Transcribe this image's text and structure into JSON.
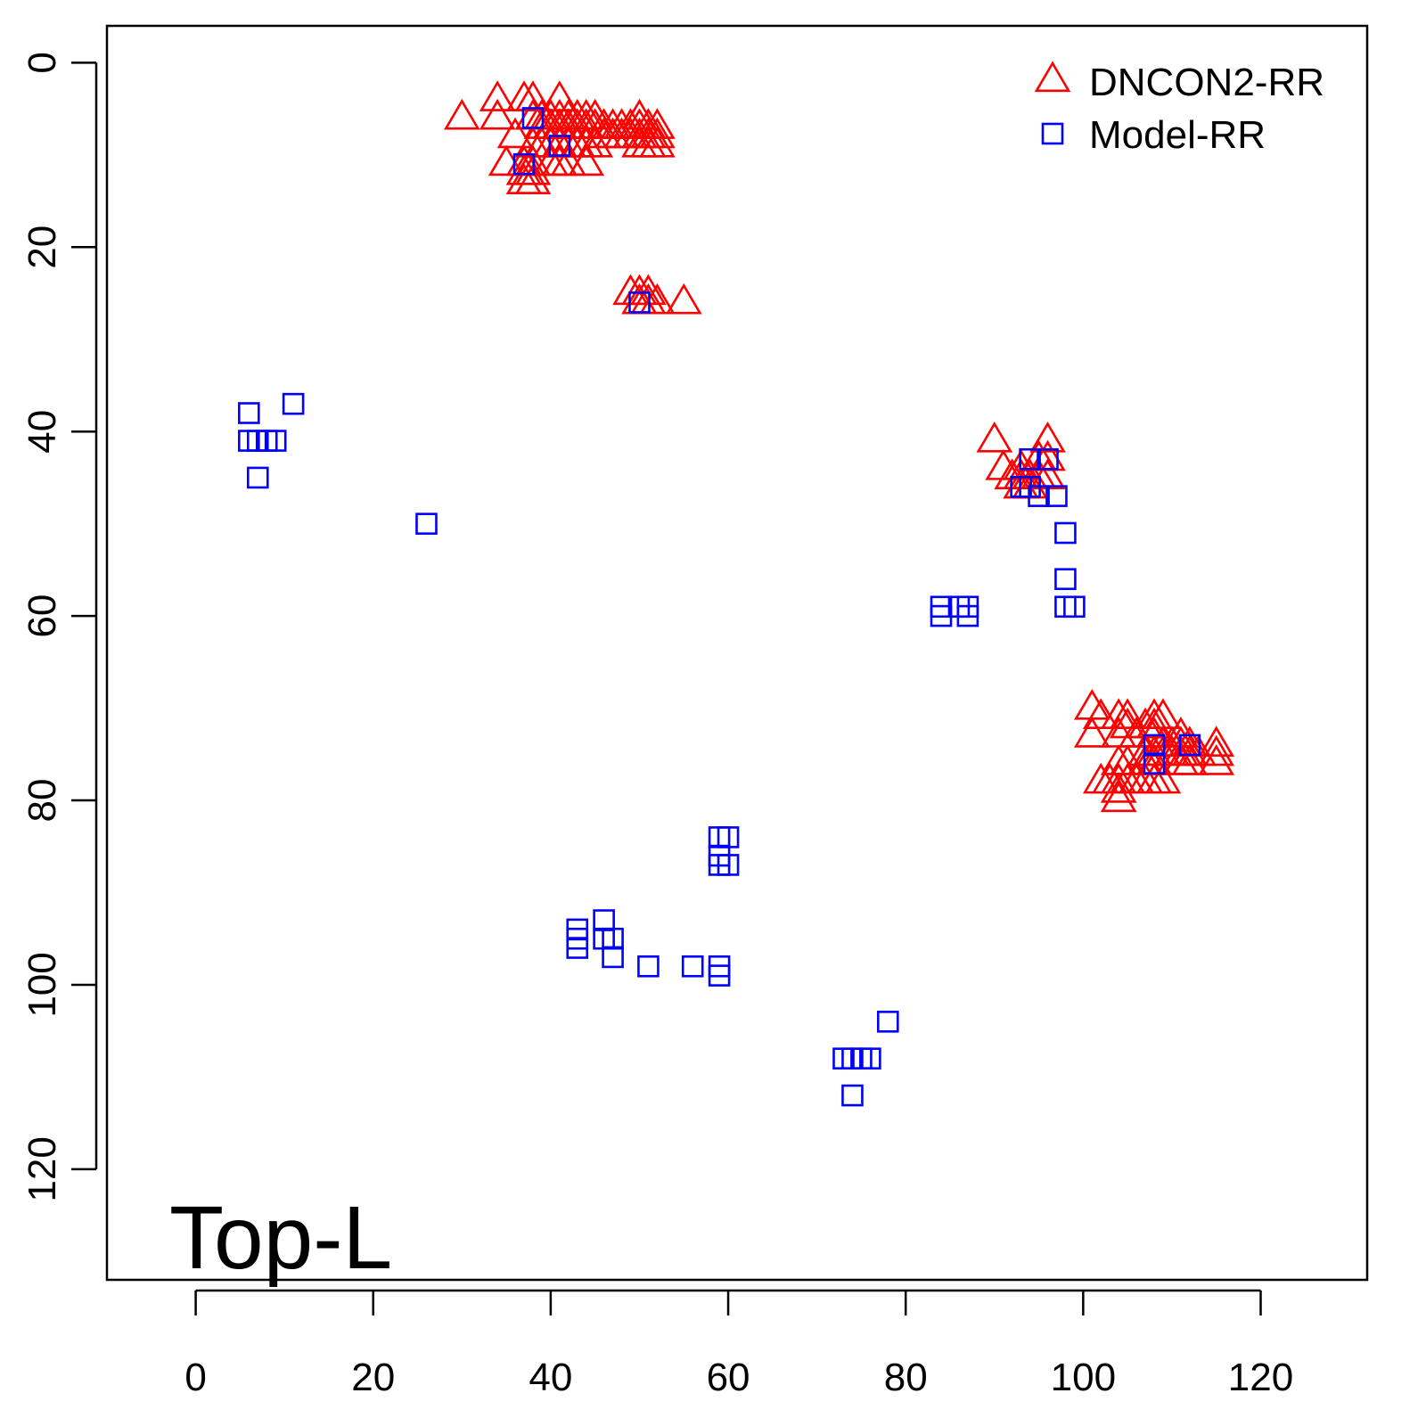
{
  "chart_data": {
    "type": "scatter",
    "title": "",
    "xlabel": "",
    "ylabel": "",
    "annotation": "Top-L",
    "xlim": [
      -10,
      132
    ],
    "ylim": [
      -4,
      132
    ],
    "y_reversed": true,
    "x_ticks": [
      0,
      20,
      40,
      60,
      80,
      100,
      120
    ],
    "y_ticks": [
      0,
      20,
      40,
      60,
      80,
      100,
      120
    ],
    "grid": false,
    "legend_position": "top-right",
    "series": [
      {
        "name": "DNCON2-RR",
        "marker": "triangle",
        "color": "#ff0000",
        "points": [
          [
            30,
            6
          ],
          [
            34,
            4
          ],
          [
            34,
            6
          ],
          [
            37,
            4
          ],
          [
            38,
            4
          ],
          [
            36,
            8
          ],
          [
            39,
            6
          ],
          [
            40,
            6
          ],
          [
            41,
            4
          ],
          [
            41,
            6
          ],
          [
            42,
            6
          ],
          [
            43,
            6
          ],
          [
            44,
            6
          ],
          [
            45,
            6
          ],
          [
            46,
            7
          ],
          [
            47,
            7
          ],
          [
            48,
            7
          ],
          [
            49,
            7
          ],
          [
            50,
            6
          ],
          [
            50,
            7
          ],
          [
            51,
            7
          ],
          [
            52,
            7
          ],
          [
            38,
            6
          ],
          [
            39,
            7
          ],
          [
            40,
            7
          ],
          [
            41,
            7
          ],
          [
            42,
            7
          ],
          [
            43,
            7
          ],
          [
            44,
            7
          ],
          [
            45,
            7
          ],
          [
            46,
            8
          ],
          [
            47,
            8
          ],
          [
            48,
            8
          ],
          [
            49,
            8
          ],
          [
            50,
            8
          ],
          [
            51,
            8
          ],
          [
            52,
            8
          ],
          [
            38,
            9
          ],
          [
            39,
            9
          ],
          [
            40,
            9
          ],
          [
            41,
            9
          ],
          [
            42,
            9
          ],
          [
            43,
            9
          ],
          [
            44,
            9
          ],
          [
            45,
            9
          ],
          [
            50,
            9
          ],
          [
            51,
            9
          ],
          [
            52,
            9
          ],
          [
            35,
            11
          ],
          [
            37,
            11
          ],
          [
            38,
            11
          ],
          [
            40,
            11
          ],
          [
            41,
            11
          ],
          [
            42,
            11
          ],
          [
            44,
            11
          ],
          [
            37,
            12
          ],
          [
            38,
            12
          ],
          [
            37,
            13
          ],
          [
            38,
            13
          ],
          [
            49,
            25
          ],
          [
            50,
            25
          ],
          [
            51,
            25
          ],
          [
            50,
            26
          ],
          [
            51,
            26
          ],
          [
            52,
            26
          ],
          [
            55,
            26
          ],
          [
            90,
            41
          ],
          [
            96,
            41
          ],
          [
            91,
            44
          ],
          [
            93,
            44
          ],
          [
            95,
            43
          ],
          [
            96,
            43
          ],
          [
            92,
            45
          ],
          [
            93,
            45
          ],
          [
            94,
            45
          ],
          [
            95,
            45
          ],
          [
            96,
            45
          ],
          [
            93,
            46
          ],
          [
            94,
            46
          ],
          [
            101,
            70
          ],
          [
            102,
            71
          ],
          [
            104,
            71
          ],
          [
            105,
            71
          ],
          [
            108,
            71
          ],
          [
            109,
            71
          ],
          [
            105,
            72
          ],
          [
            107,
            72
          ],
          [
            108,
            72
          ],
          [
            101,
            73
          ],
          [
            104,
            73
          ],
          [
            106,
            73
          ],
          [
            108,
            73
          ],
          [
            111,
            73
          ],
          [
            109,
            74
          ],
          [
            110,
            74
          ],
          [
            111,
            74
          ],
          [
            112,
            74
          ],
          [
            115,
            74
          ],
          [
            107,
            75
          ],
          [
            108,
            75
          ],
          [
            109,
            75
          ],
          [
            110,
            75
          ],
          [
            111,
            75
          ],
          [
            112,
            75
          ],
          [
            113,
            75
          ],
          [
            115,
            75
          ],
          [
            104,
            76
          ],
          [
            105,
            76
          ],
          [
            107,
            76
          ],
          [
            108,
            76
          ],
          [
            111,
            76
          ],
          [
            112,
            76
          ],
          [
            115,
            76
          ],
          [
            102,
            78
          ],
          [
            103,
            78
          ],
          [
            104,
            78
          ],
          [
            105,
            78
          ],
          [
            106,
            78
          ],
          [
            107,
            78
          ],
          [
            108,
            78
          ],
          [
            109,
            78
          ],
          [
            104,
            79
          ],
          [
            104,
            80
          ]
        ]
      },
      {
        "name": "Model-RR",
        "marker": "square",
        "color": "#0000ff",
        "points": [
          [
            38,
            6
          ],
          [
            37,
            11
          ],
          [
            41,
            9
          ],
          [
            50,
            26
          ],
          [
            6,
            38
          ],
          [
            11,
            37
          ],
          [
            6,
            41
          ],
          [
            7,
            41
          ],
          [
            8,
            41
          ],
          [
            9,
            41
          ],
          [
            7,
            45
          ],
          [
            26,
            50
          ],
          [
            94,
            43
          ],
          [
            96,
            43
          ],
          [
            93,
            46
          ],
          [
            94,
            46
          ],
          [
            95,
            47
          ],
          [
            97,
            47
          ],
          [
            98,
            51
          ],
          [
            98,
            56
          ],
          [
            98,
            59
          ],
          [
            99,
            59
          ],
          [
            84,
            59
          ],
          [
            86,
            59
          ],
          [
            87,
            59
          ],
          [
            84,
            60
          ],
          [
            87,
            60
          ],
          [
            108,
            74
          ],
          [
            112,
            74
          ],
          [
            108,
            76
          ],
          [
            59,
            84
          ],
          [
            60,
            84
          ],
          [
            59,
            86
          ],
          [
            59,
            87
          ],
          [
            60,
            87
          ],
          [
            43,
            94
          ],
          [
            46,
            93
          ],
          [
            43,
            95
          ],
          [
            46,
            95
          ],
          [
            47,
            95
          ],
          [
            43,
            96
          ],
          [
            47,
            97
          ],
          [
            51,
            98
          ],
          [
            56,
            98
          ],
          [
            59,
            98
          ],
          [
            59,
            99
          ],
          [
            78,
            104
          ],
          [
            73,
            108
          ],
          [
            74,
            108
          ],
          [
            75,
            108
          ],
          [
            76,
            108
          ],
          [
            74,
            112
          ]
        ]
      }
    ]
  }
}
